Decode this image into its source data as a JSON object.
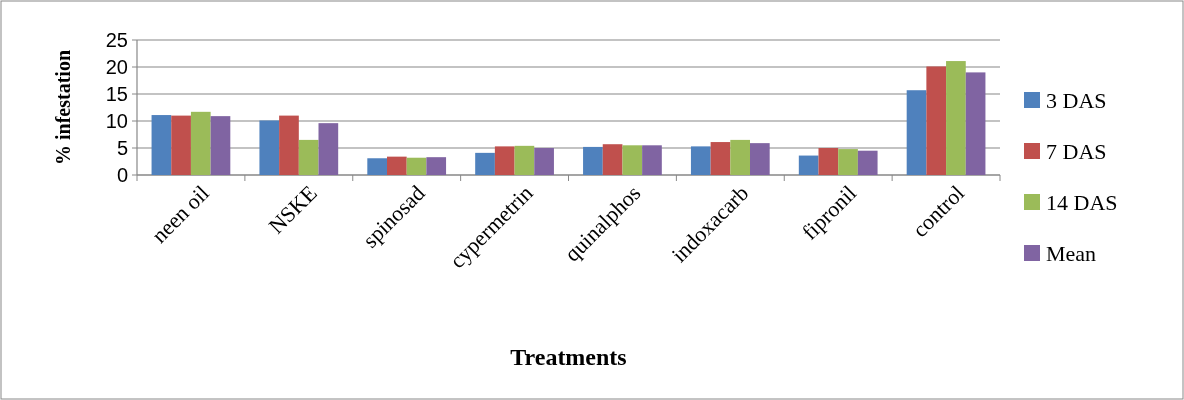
{
  "chart_data": {
    "type": "bar",
    "xlabel": "Treatments",
    "ylabel": "% infestation",
    "categories": [
      "neen oil",
      "NSKE",
      "spinosad",
      "cypermetrin",
      "quinalphos",
      "indoxacarb",
      "fipronil",
      "control"
    ],
    "series": [
      {
        "name": "3 DAS",
        "color": "#4f81bd",
        "values": [
          11.1,
          10.1,
          3.1,
          4.1,
          5.2,
          5.3,
          3.6,
          15.7
        ]
      },
      {
        "name": "7 DAS",
        "color": "#c0504d",
        "values": [
          11.0,
          11.0,
          3.4,
          5.3,
          5.7,
          6.1,
          5.0,
          20.1
        ]
      },
      {
        "name": "14 DAS",
        "color": "#9bbb59",
        "values": [
          11.7,
          6.5,
          3.2,
          5.4,
          5.5,
          6.5,
          4.8,
          21.1
        ]
      },
      {
        "name": "Mean",
        "color": "#8064a2",
        "values": [
          10.9,
          9.6,
          3.3,
          5.0,
          5.5,
          5.9,
          4.5,
          19.0
        ]
      }
    ],
    "ylim": [
      0,
      25
    ],
    "yticks": [
      0,
      5,
      10,
      15,
      20,
      25
    ],
    "grid": "y",
    "legend": "right"
  }
}
